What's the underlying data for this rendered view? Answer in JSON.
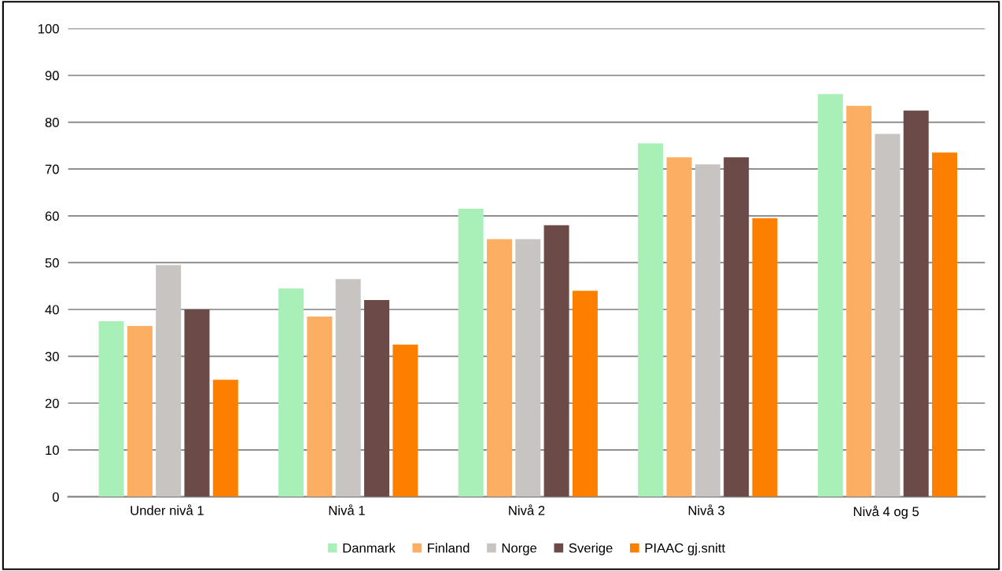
{
  "chart_data": {
    "type": "bar",
    "categories": [
      "Under nivå 1",
      "Nivå 1",
      "Nivå 2",
      "Nivå 3",
      "Nivå 4 og 5"
    ],
    "series": [
      {
        "name": "Danmark",
        "color": "#a8f0b8",
        "values": [
          37.5,
          44.5,
          61.5,
          75.5,
          86
        ]
      },
      {
        "name": "Finland",
        "color": "#fcae62",
        "values": [
          36.5,
          38.5,
          55,
          72.5,
          83.5
        ]
      },
      {
        "name": "Norge",
        "color": "#c8c4c2",
        "values": [
          49.5,
          46.5,
          55,
          71,
          77.5
        ]
      },
      {
        "name": "Sverige",
        "color": "#6b4a48",
        "values": [
          40,
          42,
          58,
          72.5,
          82.5
        ]
      },
      {
        "name": "PIAAC gj.snitt",
        "color": "#fc7f00",
        "values": [
          25,
          32.5,
          44,
          59.5,
          73.5
        ]
      }
    ],
    "ylim": [
      0,
      100
    ],
    "yticks": [
      0,
      10,
      20,
      30,
      40,
      50,
      60,
      70,
      80,
      90,
      100
    ],
    "grid": "y",
    "legend": "bottom"
  }
}
